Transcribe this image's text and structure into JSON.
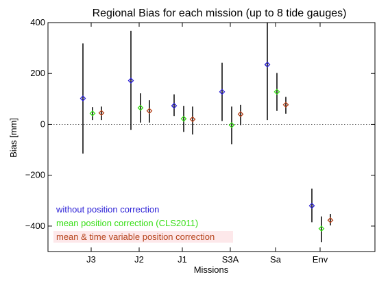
{
  "chart_data": {
    "type": "scatter",
    "title": "Regional Bias for each mission (up to 8 tide gauges)",
    "xlabel": "Missions",
    "ylabel": "Bias [mm]",
    "ylim": [
      -500,
      400
    ],
    "yticks": [
      -400,
      -200,
      0,
      200,
      400
    ],
    "yticklabels": [
      "−400",
      "−200",
      "0",
      "200",
      "400"
    ],
    "categories": [
      "J3",
      "J2",
      "J1",
      "S3A",
      "Sa",
      "Env"
    ],
    "grid": false,
    "zero_line": "dotted",
    "legend_position": "bottom-left",
    "series": [
      {
        "name": "without position correction",
        "color": "#2a1fd6",
        "values": [
          102,
          172,
          73,
          128,
          235,
          -320
        ],
        "err_low": [
          -115,
          -22,
          33,
          13,
          17,
          -385
        ],
        "err_high": [
          318,
          368,
          118,
          242,
          400,
          -253
        ]
      },
      {
        "name": "mean position correction (CLS2011)",
        "color": "#33dd11",
        "values": [
          43,
          65,
          22,
          -3,
          128,
          -410
        ],
        "err_low": [
          17,
          7,
          -30,
          -78,
          53,
          -463
        ],
        "err_high": [
          68,
          122,
          72,
          70,
          202,
          -362
        ]
      },
      {
        "name": "mean & time variable position correction",
        "color": "#b5421a",
        "values": [
          45,
          53,
          20,
          40,
          77,
          -377
        ],
        "err_low": [
          17,
          7,
          -40,
          -3,
          42,
          -397
        ],
        "err_high": [
          70,
          95,
          70,
          77,
          108,
          -352
        ]
      }
    ]
  }
}
